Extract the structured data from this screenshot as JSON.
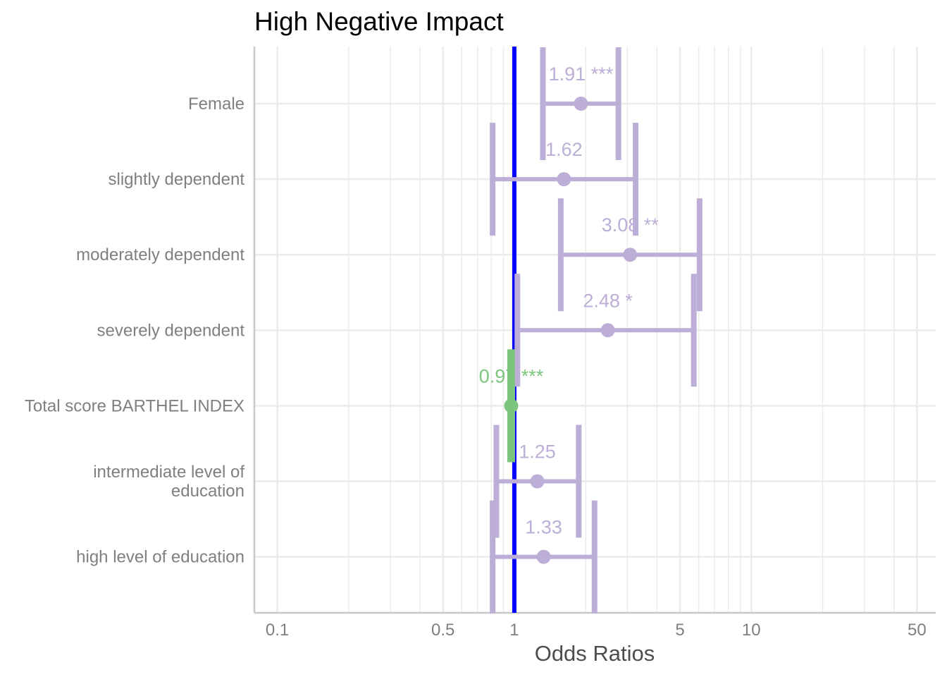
{
  "chart_data": {
    "type": "forest",
    "title": "High Negative Impact",
    "xlabel": "Odds Ratios",
    "x_scale": "log10",
    "xlim": [
      0.08,
      60
    ],
    "x_ticks": [
      {
        "value": 0.1,
        "label": "0.1"
      },
      {
        "value": 0.5,
        "label": "0.5"
      },
      {
        "value": 1,
        "label": "1"
      },
      {
        "value": 5,
        "label": "5"
      },
      {
        "value": 10,
        "label": "10"
      },
      {
        "value": 50,
        "label": "50"
      }
    ],
    "x_minor_gridlines": [
      0.2,
      0.3,
      0.4,
      0.6,
      0.7,
      0.8,
      0.9,
      2,
      3,
      4,
      6,
      7,
      8,
      9,
      20,
      30,
      40
    ],
    "grid": true,
    "reference_line": {
      "value": 1,
      "color": "#0000ff"
    },
    "colors": {
      "positive": "#bcaed6",
      "negative": "#7cc57f"
    },
    "terms": [
      {
        "label": "Female",
        "lines": [
          "Female"
        ],
        "estimate": 1.91,
        "ci_low": 1.32,
        "ci_high": 2.75,
        "value_label": "1.91 ***",
        "effect": "positive"
      },
      {
        "label": "slightly dependent",
        "lines": [
          "slightly dependent"
        ],
        "estimate": 1.62,
        "ci_low": 0.81,
        "ci_high": 3.25,
        "value_label": "1.62",
        "effect": "positive"
      },
      {
        "label": "moderately dependent",
        "lines": [
          "moderately dependent"
        ],
        "estimate": 3.08,
        "ci_low": 1.57,
        "ci_high": 6.05,
        "value_label": "3.08 **",
        "effect": "positive"
      },
      {
        "label": "severely dependent",
        "lines": [
          "severely dependent"
        ],
        "estimate": 2.48,
        "ci_low": 1.03,
        "ci_high": 5.72,
        "value_label": "2.48 *",
        "effect": "positive"
      },
      {
        "label": "Total score BARTHEL INDEX",
        "lines": [
          "Total score BARTHEL INDEX"
        ],
        "estimate": 0.97,
        "ci_low": 0.96,
        "ci_high": 0.98,
        "value_label": "0.97 ***",
        "effect": "negative"
      },
      {
        "label": "intermediate level of education",
        "lines": [
          "intermediate level of",
          "education"
        ],
        "estimate": 1.25,
        "ci_low": 0.84,
        "ci_high": 1.87,
        "value_label": "1.25",
        "effect": "positive"
      },
      {
        "label": "high level of education",
        "lines": [
          "high level of education"
        ],
        "estimate": 1.33,
        "ci_low": 0.81,
        "ci_high": 2.18,
        "value_label": "1.33",
        "effect": "positive"
      }
    ]
  }
}
